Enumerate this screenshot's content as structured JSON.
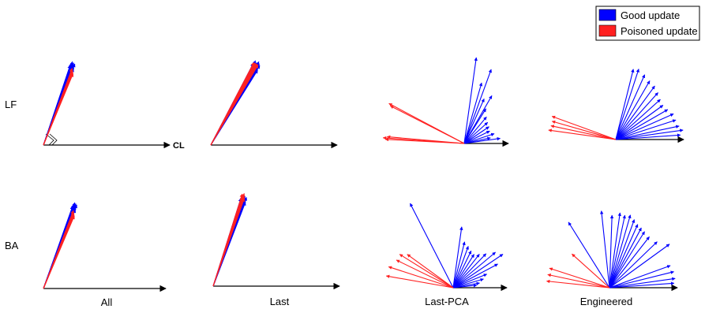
{
  "legend": {
    "items": [
      {
        "label": "Good update",
        "color": "#0000ff"
      },
      {
        "label": "Poisoned update",
        "color": "#ff2020"
      }
    ]
  },
  "row_labels": [
    "LF",
    "BA"
  ],
  "column_labels": [
    "All",
    "Last",
    "Last-PCA",
    "Engineered"
  ],
  "axis_label": "CL",
  "colors": {
    "good": "#0000ff",
    "poisoned": "#ff2020",
    "axis": "#000000"
  }
}
